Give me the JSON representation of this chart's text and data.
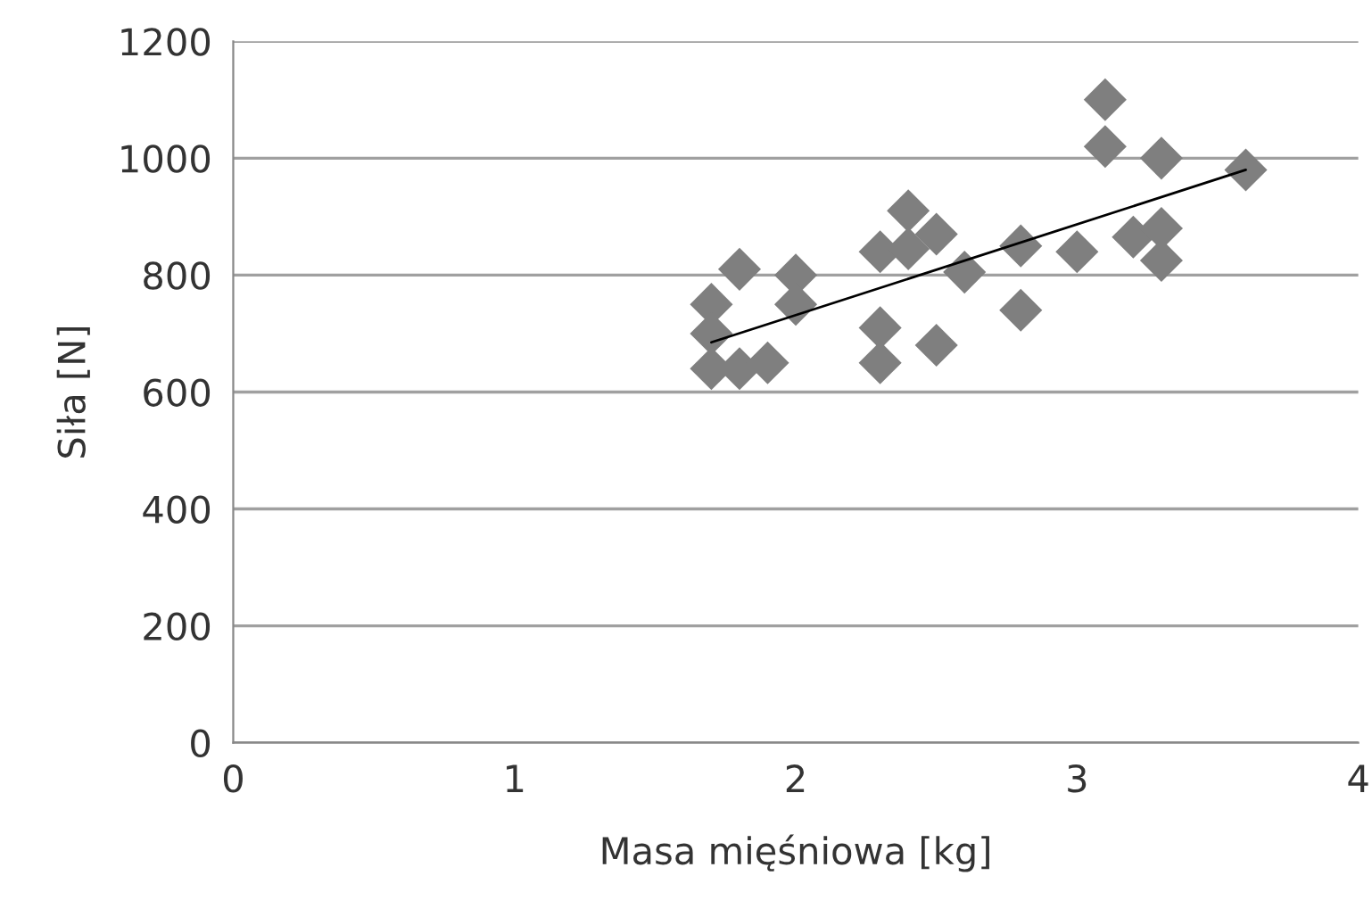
{
  "chart_data": {
    "type": "scatter",
    "xlabel": "Masa mięśniowa [kg]",
    "ylabel": "Siła [N]",
    "xlim": [
      0,
      4
    ],
    "xticks": [
      0,
      1,
      2,
      3,
      4
    ],
    "ylim": [
      0,
      1200
    ],
    "yticks": [
      0,
      200,
      400,
      600,
      800,
      1000,
      1200
    ],
    "grid": "y",
    "series": [
      {
        "marker": "diamond",
        "color": "#7f7f7f",
        "x": [
          1.7,
          1.7,
          1.7,
          1.8,
          1.8,
          1.9,
          2.0,
          2.0,
          2.3,
          2.3,
          2.3,
          2.4,
          2.4,
          2.5,
          2.5,
          2.6,
          2.8,
          2.8,
          3.0,
          3.1,
          3.1,
          3.2,
          3.3,
          3.3,
          3.3,
          3.6
        ],
        "values": [
          750,
          700,
          640,
          810,
          640,
          650,
          800,
          750,
          840,
          710,
          650,
          910,
          845,
          870,
          680,
          805,
          850,
          740,
          840,
          1100,
          1020,
          865,
          1000,
          880,
          825,
          980
        ]
      },
      {
        "type": "line",
        "marker": "none",
        "color": "#000000",
        "x": [
          1.7,
          3.6
        ],
        "values": [
          685,
          980
        ]
      }
    ]
  }
}
